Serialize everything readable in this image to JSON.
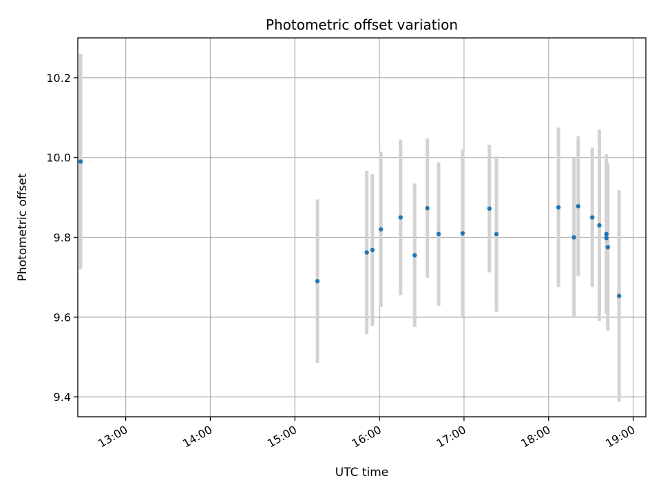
{
  "chart_data": {
    "type": "scatter",
    "title": "Photometric offset variation",
    "xlabel": "UTC time",
    "ylabel": "Photometric offset",
    "xlim": [
      "12:26",
      "19:09"
    ],
    "ylim": [
      9.35,
      10.3
    ],
    "x_ticks": [
      "13:00",
      "14:00",
      "15:00",
      "16:00",
      "17:00",
      "18:00",
      "19:00"
    ],
    "y_ticks": [
      "9.4",
      "9.6",
      "9.8",
      "10.0",
      "10.2"
    ],
    "grid": true,
    "point_color": "#1f77b4",
    "errorbar_color": "#d3d3d3",
    "points": [
      {
        "x": "12:28",
        "y": 9.99,
        "err": 0.27
      },
      {
        "x": "15:16",
        "y": 9.69,
        "err": 0.205
      },
      {
        "x": "15:51",
        "y": 9.762,
        "err": 0.205
      },
      {
        "x": "15:55",
        "y": 9.768,
        "err": 0.19
      },
      {
        "x": "16:01",
        "y": 9.82,
        "err": 0.195
      },
      {
        "x": "16:15",
        "y": 9.85,
        "err": 0.195
      },
      {
        "x": "16:25",
        "y": 9.755,
        "err": 0.18
      },
      {
        "x": "16:34",
        "y": 9.873,
        "err": 0.175
      },
      {
        "x": "16:42",
        "y": 9.808,
        "err": 0.18
      },
      {
        "x": "16:59",
        "y": 9.81,
        "err": 0.21
      },
      {
        "x": "17:18",
        "y": 9.872,
        "err": 0.16
      },
      {
        "x": "17:23",
        "y": 9.808,
        "err": 0.195
      },
      {
        "x": "18:07",
        "y": 9.875,
        "err": 0.2
      },
      {
        "x": "18:18",
        "y": 9.8,
        "err": 0.2
      },
      {
        "x": "18:21",
        "y": 9.878,
        "err": 0.175
      },
      {
        "x": "18:31",
        "y": 9.85,
        "err": 0.175
      },
      {
        "x": "18:36",
        "y": 9.83,
        "err": 0.24
      },
      {
        "x": "18:41",
        "y": 9.808,
        "err": 0.2
      },
      {
        "x": "18:41",
        "y": 9.798,
        "err": 0.19
      },
      {
        "x": "18:42",
        "y": 9.775,
        "err": 0.21
      },
      {
        "x": "18:50",
        "y": 9.653,
        "err": 0.265
      }
    ]
  }
}
